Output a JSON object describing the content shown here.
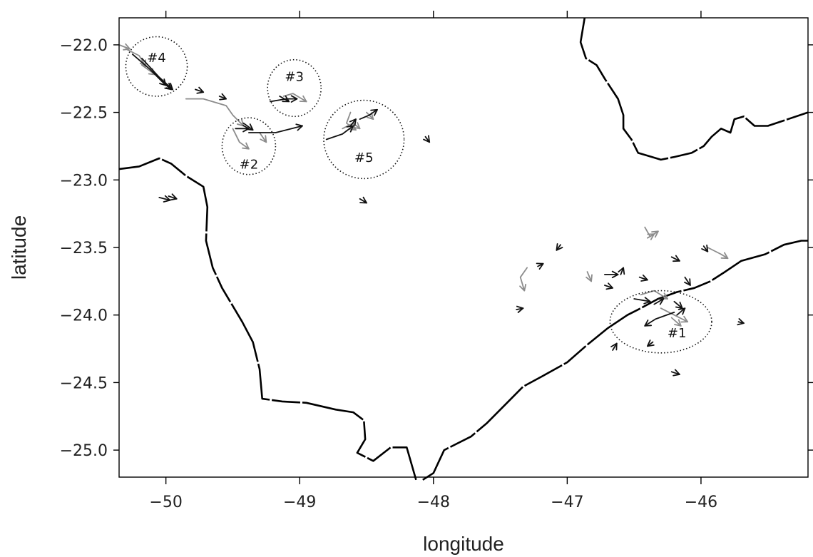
{
  "chart_data": {
    "type": "map",
    "xlabel": "longitude",
    "ylabel": "latitude",
    "xlim": [
      -50.35,
      -45.2
    ],
    "ylim": [
      -25.2,
      -21.8
    ],
    "x_ticks": [
      -50,
      -49,
      -48,
      -47,
      -46
    ],
    "y_ticks": [
      -22.0,
      -22.5,
      -23.0,
      -23.5,
      -24.0,
      -24.5,
      -25.0
    ],
    "x_tick_labels": [
      "−50",
      "−49",
      "−48",
      "−47",
      "−46"
    ],
    "y_tick_labels": [
      "−22.0",
      "−22.5",
      "−23.0",
      "−23.5",
      "−24.0",
      "−24.5",
      "−25.0"
    ],
    "grid": false,
    "clusters": [
      {
        "label": "#1",
        "lon": -46.3,
        "lat": -24.05,
        "rx": 0.38,
        "ry": 0.23,
        "label_lon": -46.18,
        "label_lat": -24.14
      },
      {
        "label": "#2",
        "lon": -49.38,
        "lat": -22.75,
        "rx": 0.2,
        "ry": 0.21,
        "label_lon": -49.38,
        "label_lat": -22.89
      },
      {
        "label": "#3",
        "lon": -49.04,
        "lat": -22.32,
        "rx": 0.2,
        "ry": 0.21,
        "label_lon": -49.04,
        "label_lat": -22.24
      },
      {
        "label": "#4",
        "lon": -50.07,
        "lat": -22.16,
        "rx": 0.23,
        "ry": 0.22,
        "label_lon": -50.07,
        "label_lat": -22.1
      },
      {
        "label": "#5",
        "lon": -48.52,
        "lat": -22.7,
        "rx": 0.3,
        "ry": 0.29,
        "label_lon": -48.52,
        "label_lat": -22.84
      }
    ],
    "coastline": [
      [
        [
          -50.35,
          -22.92
        ],
        [
          -50.2,
          -22.9
        ],
        [
          -50.05,
          -22.84
        ],
        [
          -49.96,
          -22.88
        ],
        [
          -49.85,
          -22.97
        ],
        [
          -49.72,
          -23.05
        ],
        [
          -49.69,
          -23.2
        ],
        [
          -49.7,
          -23.45
        ],
        [
          -49.65,
          -23.65
        ],
        [
          -49.58,
          -23.8
        ],
        [
          -49.52,
          -23.9
        ],
        [
          -49.43,
          -24.05
        ],
        [
          -49.35,
          -24.2
        ],
        [
          -49.3,
          -24.4
        ],
        [
          -49.28,
          -24.62
        ],
        [
          -49.13,
          -24.64
        ],
        [
          -48.95,
          -24.65
        ],
        [
          -48.73,
          -24.7
        ],
        [
          -48.6,
          -24.72
        ],
        [
          -48.52,
          -24.78
        ],
        [
          -48.51,
          -24.92
        ],
        [
          -48.57,
          -25.02
        ],
        [
          -48.45,
          -25.08
        ],
        [
          -48.32,
          -24.98
        ],
        [
          -48.2,
          -24.98
        ],
        [
          -48.13,
          -25.22
        ]
      ],
      [
        [
          -48.08,
          -25.22
        ],
        [
          -48.0,
          -25.17
        ],
        [
          -47.92,
          -25.0
        ],
        [
          -47.72,
          -24.9
        ],
        [
          -47.6,
          -24.8
        ],
        [
          -47.45,
          -24.65
        ],
        [
          -47.33,
          -24.53
        ],
        [
          -47.18,
          -24.45
        ],
        [
          -47.0,
          -24.35
        ],
        [
          -46.85,
          -24.22
        ],
        [
          -46.7,
          -24.1
        ],
        [
          -46.55,
          -24.0
        ],
        [
          -46.45,
          -23.95
        ],
        [
          -46.32,
          -23.88
        ],
        [
          -46.18,
          -23.83
        ],
        [
          -46.05,
          -23.8
        ],
        [
          -45.93,
          -23.75
        ],
        [
          -45.82,
          -23.68
        ],
        [
          -45.7,
          -23.6
        ],
        [
          -45.52,
          -23.55
        ],
        [
          -45.38,
          -23.48
        ],
        [
          -45.25,
          -23.45
        ],
        [
          -45.2,
          -23.45
        ]
      ],
      [
        [
          -46.87,
          -21.8
        ],
        [
          -46.9,
          -21.98
        ],
        [
          -46.86,
          -22.1
        ],
        [
          -46.78,
          -22.15
        ],
        [
          -46.72,
          -22.25
        ],
        [
          -46.62,
          -22.4
        ],
        [
          -46.58,
          -22.52
        ],
        [
          -46.58,
          -22.62
        ],
        [
          -46.52,
          -22.7
        ],
        [
          -46.47,
          -22.8
        ],
        [
          -46.4,
          -22.82
        ],
        [
          -46.3,
          -22.85
        ],
        [
          -46.2,
          -22.83
        ],
        [
          -46.07,
          -22.8
        ],
        [
          -45.98,
          -22.75
        ],
        [
          -45.92,
          -22.68
        ],
        [
          -45.85,
          -22.62
        ],
        [
          -45.78,
          -22.65
        ],
        [
          -45.75,
          -22.55
        ],
        [
          -45.68,
          -22.53
        ],
        [
          -45.6,
          -22.6
        ],
        [
          -45.5,
          -22.6
        ],
        [
          -45.38,
          -22.56
        ],
        [
          -45.2,
          -22.5
        ]
      ]
    ],
    "vectors_black": [
      [
        [
          -50.25,
          -22.07
        ],
        [
          -50.12,
          -22.18
        ],
        [
          -50.0,
          -22.3
        ]
      ],
      [
        [
          -50.18,
          -22.1
        ],
        [
          -50.05,
          -22.24
        ],
        [
          -49.95,
          -22.33
        ]
      ],
      [
        [
          -50.1,
          -22.2
        ],
        [
          -50.02,
          -22.28
        ],
        [
          -49.96,
          -22.33
        ]
      ],
      [
        [
          -49.78,
          -22.33
        ],
        [
          -49.72,
          -22.35
        ]
      ],
      [
        [
          -49.6,
          -22.38
        ],
        [
          -49.55,
          -22.4
        ]
      ],
      [
        [
          -49.22,
          -22.42
        ],
        [
          -49.1,
          -22.4
        ],
        [
          -49.02,
          -22.4
        ]
      ],
      [
        [
          -49.15,
          -22.38
        ],
        [
          -49.08,
          -22.42
        ]
      ],
      [
        [
          -49.48,
          -22.62
        ],
        [
          -49.38,
          -22.62
        ]
      ],
      [
        [
          -49.38,
          -22.65
        ],
        [
          -49.18,
          -22.65
        ],
        [
          -48.98,
          -22.6
        ]
      ],
      [
        [
          -49.42,
          -22.58
        ],
        [
          -49.35,
          -22.63
        ]
      ],
      [
        [
          -48.8,
          -22.7
        ],
        [
          -48.68,
          -22.66
        ],
        [
          -48.6,
          -22.6
        ]
      ],
      [
        [
          -48.55,
          -22.55
        ],
        [
          -48.48,
          -22.52
        ],
        [
          -48.42,
          -22.48
        ]
      ],
      [
        [
          -48.62,
          -22.6
        ],
        [
          -48.58,
          -22.55
        ]
      ],
      [
        [
          -48.06,
          -22.68
        ],
        [
          -48.03,
          -22.72
        ]
      ],
      [
        [
          -50.05,
          -23.13
        ],
        [
          -49.97,
          -23.15
        ]
      ],
      [
        [
          -49.98,
          -23.12
        ],
        [
          -49.92,
          -23.14
        ]
      ],
      [
        [
          -48.55,
          -23.14
        ],
        [
          -48.5,
          -23.17
        ]
      ],
      [
        [
          -46.18,
          -24.0
        ],
        [
          -46.12,
          -23.95
        ]
      ],
      [
        [
          -46.5,
          -23.88
        ],
        [
          -46.38,
          -23.9
        ]
      ],
      [
        [
          -46.35,
          -23.92
        ],
        [
          -46.28,
          -23.88
        ]
      ],
      [
        [
          -46.2,
          -23.98
        ],
        [
          -46.34,
          -24.03
        ],
        [
          -46.42,
          -24.08
        ]
      ],
      [
        [
          -46.2,
          -23.9
        ],
        [
          -46.14,
          -23.95
        ]
      ],
      [
        [
          -47.38,
          -23.96
        ],
        [
          -47.33,
          -23.95
        ]
      ],
      [
        [
          -47.22,
          -23.64
        ],
        [
          -47.18,
          -23.62
        ]
      ],
      [
        [
          -47.05,
          -23.48
        ],
        [
          -47.08,
          -23.52
        ]
      ],
      [
        [
          -46.72,
          -23.7
        ],
        [
          -46.62,
          -23.7
        ]
      ],
      [
        [
          -46.6,
          -23.7
        ],
        [
          -46.58,
          -23.65
        ]
      ],
      [
        [
          -46.72,
          -23.78
        ],
        [
          -46.66,
          -23.8
        ]
      ],
      [
        [
          -46.46,
          -23.72
        ],
        [
          -46.4,
          -23.74
        ]
      ],
      [
        [
          -46.22,
          -23.57
        ],
        [
          -46.16,
          -23.6
        ]
      ],
      [
        [
          -46.12,
          -23.72
        ],
        [
          -46.08,
          -23.78
        ]
      ],
      [
        [
          -45.98,
          -23.49
        ],
        [
          -45.95,
          -23.53
        ]
      ],
      [
        [
          -46.66,
          -24.26
        ],
        [
          -46.63,
          -24.21
        ]
      ],
      [
        [
          -46.36,
          -24.2
        ],
        [
          -46.4,
          -24.23
        ]
      ],
      [
        [
          -46.22,
          -24.42
        ],
        [
          -46.16,
          -24.44
        ]
      ],
      [
        [
          -45.72,
          -24.05
        ],
        [
          -45.68,
          -24.06
        ]
      ]
    ],
    "vectors_grey": [
      [
        [
          -50.35,
          -22.0
        ],
        [
          -50.27,
          -22.03
        ]
      ],
      [
        [
          -50.3,
          -22.03
        ],
        [
          -50.2,
          -22.08
        ],
        [
          -50.15,
          -22.16
        ]
      ],
      [
        [
          -50.18,
          -22.15
        ],
        [
          -50.08,
          -22.22
        ]
      ],
      [
        [
          -49.85,
          -22.4
        ],
        [
          -49.72,
          -22.4
        ],
        [
          -49.55,
          -22.45
        ],
        [
          -49.5,
          -22.52
        ],
        [
          -49.42,
          -22.6
        ]
      ],
      [
        [
          -49.5,
          -22.62
        ],
        [
          -49.45,
          -22.72
        ],
        [
          -49.38,
          -22.77
        ]
      ],
      [
        [
          -49.3,
          -22.65
        ],
        [
          -49.25,
          -22.72
        ]
      ],
      [
        [
          -49.12,
          -22.38
        ],
        [
          -49.05,
          -22.36
        ],
        [
          -48.95,
          -22.42
        ]
      ],
      [
        [
          -48.68,
          -22.62
        ],
        [
          -48.6,
          -22.58
        ],
        [
          -48.55,
          -22.62
        ]
      ],
      [
        [
          -48.62,
          -22.5
        ],
        [
          -48.65,
          -22.58
        ],
        [
          -48.58,
          -22.63
        ]
      ],
      [
        [
          -48.5,
          -22.5
        ],
        [
          -48.45,
          -22.55
        ]
      ],
      [
        [
          -47.3,
          -23.65
        ],
        [
          -47.35,
          -23.72
        ],
        [
          -47.32,
          -23.82
        ]
      ],
      [
        [
          -46.85,
          -23.68
        ],
        [
          -46.82,
          -23.75
        ]
      ],
      [
        [
          -46.42,
          -23.35
        ],
        [
          -46.38,
          -23.42
        ],
        [
          -46.32,
          -23.38
        ]
      ],
      [
        [
          -46.4,
          -23.43
        ],
        [
          -46.35,
          -23.4
        ]
      ],
      [
        [
          -45.95,
          -23.5
        ],
        [
          -45.85,
          -23.55
        ],
        [
          -45.8,
          -23.58
        ]
      ],
      [
        [
          -46.45,
          -23.85
        ],
        [
          -46.35,
          -23.82
        ],
        [
          -46.25,
          -23.88
        ]
      ],
      [
        [
          -46.3,
          -23.95
        ],
        [
          -46.2,
          -24.0
        ],
        [
          -46.1,
          -24.05
        ]
      ],
      [
        [
          -46.22,
          -24.02
        ],
        [
          -46.15,
          -24.08
        ]
      ]
    ]
  }
}
